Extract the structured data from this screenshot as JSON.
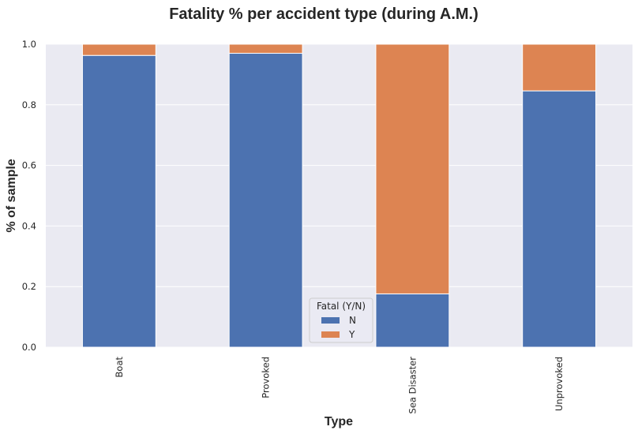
{
  "chart_data": {
    "type": "bar",
    "stacked": true,
    "title": "Fatality % per accident type (during A.M.)",
    "xlabel": "Type",
    "ylabel": "% of sample",
    "categories": [
      "Boat",
      "Provoked",
      "Sea Disaster",
      "Unprovoked"
    ],
    "series": [
      {
        "name": "N",
        "values": [
          0.963,
          0.97,
          0.176,
          0.846
        ],
        "color": "#4c72b0"
      },
      {
        "name": "Y",
        "values": [
          0.037,
          0.03,
          0.824,
          0.154
        ],
        "color": "#dd8452"
      }
    ],
    "ylim": [
      0,
      1.0
    ],
    "yticks": [
      "0.0",
      "0.2",
      "0.4",
      "0.6",
      "0.8",
      "1.0"
    ],
    "grid": true,
    "legend": {
      "title": "Fatal (Y/N)",
      "position": "lower-center"
    }
  },
  "colors": {
    "plot_background": "#eaeaf2",
    "grid": "#ffffff"
  }
}
